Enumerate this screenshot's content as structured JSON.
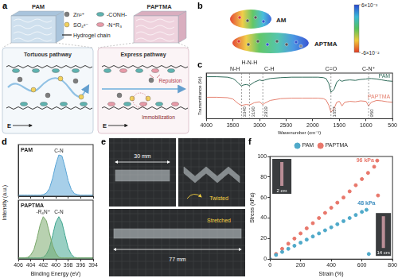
{
  "figure": {
    "a": {
      "letter": "a",
      "materials": [
        "PAM",
        "PAPTMA"
      ],
      "legend": [
        {
          "text": "Zn²⁺",
          "marker": "circle",
          "color": "#7d7d7d"
        },
        {
          "text": "-CONH-",
          "marker": "ellipse",
          "color": "#5fb3b0"
        },
        {
          "text": "SO₄²⁻",
          "marker": "circle",
          "color": "#f2d15c"
        },
        {
          "text": "-N⁺R₃",
          "marker": "ellipse",
          "color": "#e89aa8"
        },
        {
          "text": "Hydrogel chain",
          "marker": "line",
          "color": "#222222"
        }
      ],
      "pathways": [
        "Tortuous pathway",
        "Express pathway"
      ],
      "field": "E",
      "repulsion": "Repulsion",
      "immobilization": "Immobilization"
    },
    "b": {
      "letter": "b",
      "molecules": [
        "AM",
        "APTMA"
      ],
      "colorbar": {
        "range": [
          -0.06,
          0.06
        ],
        "ticks": [
          {
            "value": 0.06,
            "label": "6×10⁻²"
          },
          {
            "value": -0.06,
            "label": "-6×10⁻²"
          }
        ]
      }
    },
    "c": {
      "letter": "c"
    },
    "d": {
      "letter": "d",
      "ylabel": "Intensity (a.u.)"
    },
    "e": {
      "letter": "e",
      "width": "30 mm",
      "twisted": "Twisted",
      "stretched": "Stretched",
      "length": "77 mm"
    },
    "f": {
      "letter": "f",
      "insets": [
        "2 cm",
        "14 cm"
      ]
    }
  },
  "chart_data": [
    {
      "type": "line",
      "xlabel": "Wavenumber (cm⁻¹)",
      "ylabel": "Transmittance (%)",
      "x": [
        4000,
        3800,
        3600,
        3500,
        3450,
        3400,
        3340,
        3300,
        3250,
        3190,
        3150,
        3100,
        3000,
        2939,
        2900,
        2800,
        2600,
        2400,
        2200,
        2000,
        1900,
        1800,
        1750,
        1700,
        1657,
        1600,
        1550,
        1500,
        1450,
        1400,
        1300,
        1200,
        1100,
        1000,
        950,
        900,
        800,
        700,
        600,
        500
      ],
      "series": [
        {
          "name": "PAM",
          "color": "#2f6b5a",
          "values": [
            92,
            92,
            91,
            88,
            84,
            78,
            72,
            74,
            75,
            73,
            76,
            80,
            85,
            83,
            85,
            88,
            90,
            91,
            91,
            91,
            91,
            90,
            88,
            78,
            58,
            64,
            80,
            85,
            82,
            84,
            85,
            84,
            86,
            87,
            88,
            88,
            87,
            85,
            83,
            82
          ]
        },
        {
          "name": "PAPTMA",
          "color": "#e5806f",
          "values": [
            47,
            47,
            46,
            43,
            38,
            33,
            29,
            30,
            31,
            30,
            32,
            35,
            37,
            31,
            34,
            40,
            44,
            45,
            45,
            45,
            45,
            44,
            41,
            30,
            14,
            22,
            36,
            38,
            28,
            36,
            38,
            37,
            39,
            38,
            28,
            36,
            40,
            39,
            37,
            36
          ]
        }
      ],
      "xlim": [
        4000,
        500
      ],
      "xticks": [
        4000,
        3500,
        3000,
        2500,
        2000,
        1500,
        1000,
        500
      ],
      "ylim": [
        0,
        100
      ],
      "tick_labels": "x",
      "grid": false,
      "annotations": [
        {
          "text": "N-H",
          "x": 3340
        },
        {
          "text": "H-N-H",
          "x": 3190
        },
        {
          "text": "C-H",
          "x": 2939
        },
        {
          "text": "C=O",
          "x": 1657
        },
        {
          "text": "C-N⁺",
          "x": 950
        }
      ]
    },
    {
      "type": "line",
      "title": "PAM",
      "x": [
        406,
        405.5,
        405,
        404.5,
        404,
        403.5,
        403,
        402.5,
        402,
        401.5,
        401,
        400.5,
        400,
        399.5,
        399,
        398.5,
        398,
        397.5,
        397,
        396.5,
        396,
        395.5,
        395,
        394.5,
        394
      ],
      "series": [
        {
          "name": "C-N",
          "color": "#5aa5d6",
          "values": [
            2,
            2,
            2,
            2,
            2,
            2,
            2,
            2,
            3,
            6,
            15,
            35,
            61,
            80,
            78,
            56,
            30,
            13,
            5,
            3,
            2,
            2,
            2,
            2,
            2
          ]
        }
      ],
      "xlim": [
        406,
        394
      ],
      "xticks": [
        406,
        404,
        402,
        400,
        398,
        396,
        394
      ],
      "ylim": [
        0,
        100
      ],
      "tick_labels": false,
      "grid": false
    },
    {
      "type": "line",
      "title": "PAPTMA",
      "xlabel": "Binding Energy (eV)",
      "x": [
        406,
        405.5,
        405,
        404.5,
        404,
        403.5,
        403,
        402.5,
        402,
        401.5,
        401,
        400.5,
        400,
        399.5,
        399,
        398.5,
        398,
        397.5,
        397,
        396.5,
        396,
        395.5,
        395,
        394.5,
        394
      ],
      "series": [
        {
          "name": "-R₄N⁺",
          "color": "#7aa86b",
          "values": [
            2,
            2,
            2,
            3,
            7,
            16,
            35,
            58,
            72,
            65,
            44,
            23,
            10,
            3,
            2,
            2,
            2,
            2,
            2,
            2,
            2,
            2,
            2,
            2,
            2
          ]
        },
        {
          "name": "C-N",
          "color": "#3fa58f",
          "values": [
            2,
            2,
            2,
            2,
            2,
            2,
            2,
            2,
            3,
            8,
            19,
            40,
            62,
            72,
            62,
            40,
            19,
            8,
            3,
            2,
            2,
            2,
            2,
            2,
            2
          ]
        }
      ],
      "xlim": [
        406,
        394
      ],
      "xticks": [
        406,
        404,
        402,
        400,
        398,
        396,
        394
      ],
      "ylim": [
        0,
        100
      ],
      "tick_labels": "x",
      "grid": false
    },
    {
      "type": "scatter",
      "xlabel": "Strain (%)",
      "ylabel": "Stress (kPa)",
      "series": [
        {
          "name": "PAM",
          "color": "#4fa9c9",
          "marker": "circle",
          "x": [
            0,
            40,
            80,
            120,
            160,
            200,
            240,
            280,
            320,
            360,
            400,
            440,
            480,
            520,
            560,
            600,
            630,
            645
          ],
          "values": [
            0,
            4,
            7,
            10,
            13,
            16,
            19,
            22,
            25,
            28,
            31,
            34,
            37,
            40,
            43,
            46,
            48,
            5
          ]
        },
        {
          "name": "PAPTMA",
          "color": "#e8776b",
          "marker": "circle",
          "x": [
            0,
            40,
            80,
            120,
            160,
            200,
            240,
            280,
            320,
            360,
            400,
            440,
            480,
            520,
            560,
            600,
            640,
            680,
            700,
            705
          ],
          "values": [
            0,
            5,
            10,
            15,
            20,
            25,
            30,
            35,
            40,
            45,
            50,
            55,
            60,
            66,
            72,
            78,
            84,
            90,
            96,
            62
          ]
        }
      ],
      "xlim": [
        0,
        800
      ],
      "xticks": [
        0,
        200,
        400,
        600,
        800
      ],
      "ylim": [
        0,
        100
      ],
      "yticks": [
        0,
        20,
        40,
        60,
        80,
        100
      ],
      "legend": "top",
      "grid": false,
      "annotations": [
        {
          "text": "96 kPa",
          "x": 700,
          "y": 96,
          "color": "#e8776b"
        },
        {
          "text": "48 kPa",
          "x": 630,
          "y": 48,
          "color": "#3f8fc0"
        }
      ]
    }
  ]
}
